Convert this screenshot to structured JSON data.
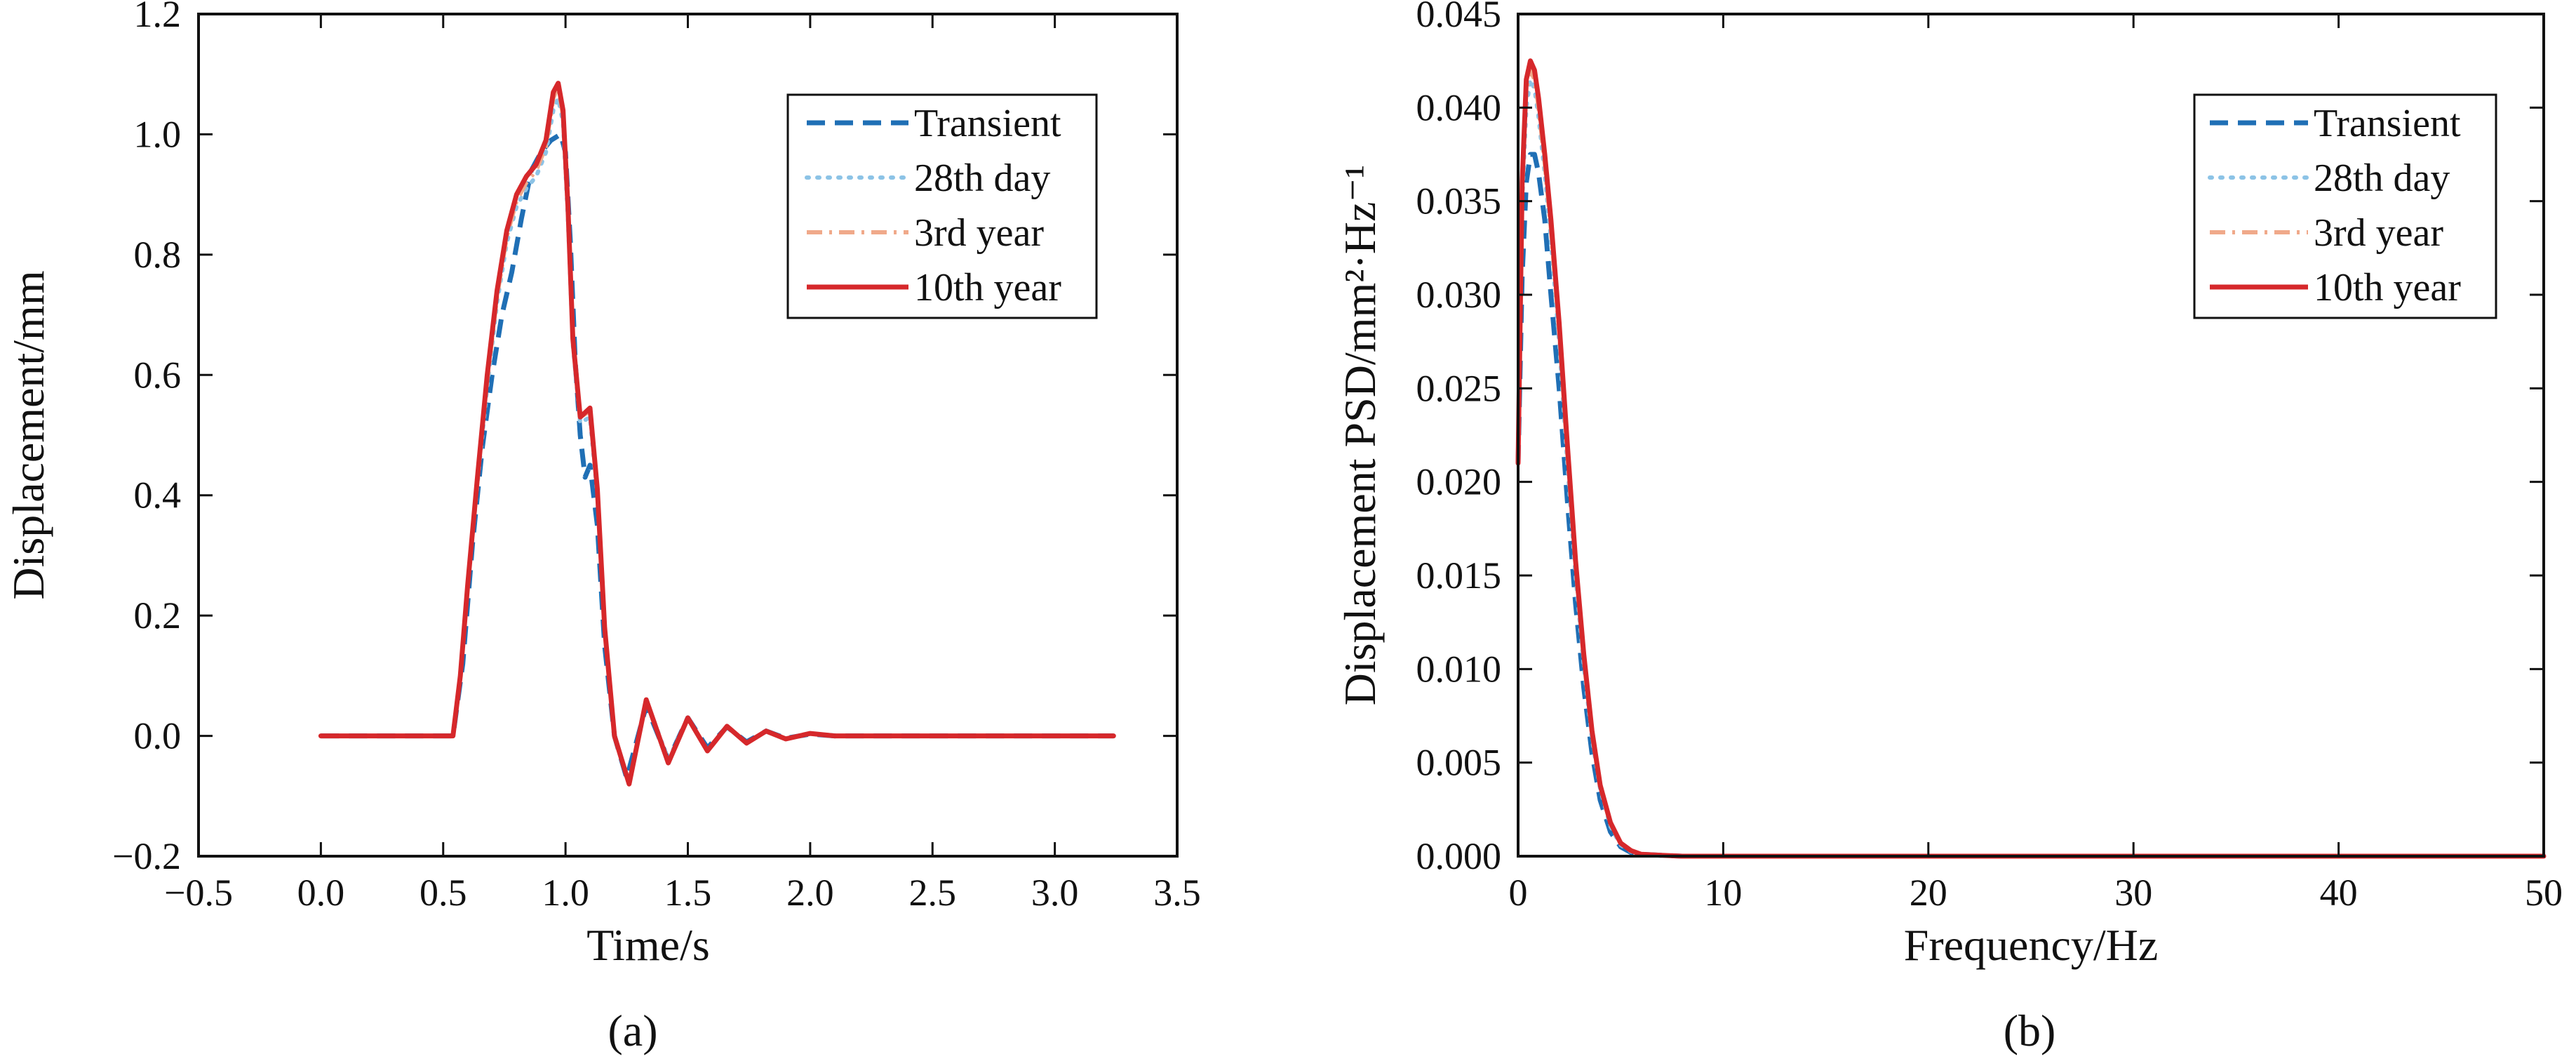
{
  "colors": {
    "transient": "#1f6fb5",
    "day28": "#8cc3e6",
    "year3": "#f0a98a",
    "year10": "#d6282b"
  },
  "chart_data": [
    {
      "id": "a",
      "type": "line",
      "panel_label": "(a)",
      "xlabel": "Time/s",
      "ylabel": "Displacement/mm",
      "xlim": [
        -0.5,
        3.5
      ],
      "ylim": [
        -0.2,
        1.2
      ],
      "xticks": [
        -0.5,
        0.0,
        0.5,
        1.0,
        1.5,
        2.0,
        2.5,
        3.0,
        3.5
      ],
      "xtick_labels": [
        "−0.5",
        "0.0",
        "0.5",
        "1.0",
        "1.5",
        "2.0",
        "2.5",
        "3.0",
        "3.5"
      ],
      "yticks": [
        -0.2,
        0.0,
        0.2,
        0.4,
        0.6,
        0.8,
        1.0,
        1.2
      ],
      "ytick_labels": [
        "−0.2",
        "0.0",
        "0.2",
        "0.4",
        "0.6",
        "0.8",
        "1.0",
        "1.2"
      ],
      "legend_position": "top-right",
      "series": [
        {
          "name": "Transient",
          "style": "dashed",
          "color_key": "transient",
          "x": [
            0.0,
            0.54,
            0.58,
            0.62,
            0.66,
            0.7,
            0.74,
            0.78,
            0.82,
            0.86,
            0.9,
            0.94,
            0.98,
            1.0,
            1.02,
            1.04,
            1.06,
            1.08,
            1.1,
            1.13,
            1.16,
            1.2,
            1.25,
            1.33,
            1.42,
            1.5,
            1.58,
            1.66,
            1.74,
            1.82,
            1.9,
            2.0,
            2.1,
            2.3,
            2.6,
            3.24
          ],
          "y": [
            0.0,
            0.0,
            0.12,
            0.32,
            0.48,
            0.6,
            0.7,
            0.77,
            0.86,
            0.94,
            0.97,
            0.99,
            1.0,
            0.97,
            0.82,
            0.62,
            0.5,
            0.43,
            0.45,
            0.35,
            0.15,
            0.0,
            -0.07,
            0.05,
            -0.04,
            0.03,
            -0.02,
            0.015,
            -0.01,
            0.008,
            -0.004,
            0.003,
            0.0,
            0.0,
            0.0,
            0.0
          ]
        },
        {
          "name": "28th day",
          "style": "dotted",
          "color_key": "day28",
          "x": [
            0.0,
            0.54,
            0.57,
            0.6,
            0.64,
            0.68,
            0.72,
            0.76,
            0.8,
            0.84,
            0.88,
            0.92,
            0.95,
            0.97,
            0.99,
            1.01,
            1.03,
            1.06,
            1.1,
            1.13,
            1.16,
            1.2,
            1.26,
            1.33,
            1.42,
            1.5,
            1.58,
            1.66,
            1.74,
            1.82,
            1.9,
            2.0,
            2.1,
            2.3,
            2.6,
            3.24
          ],
          "y": [
            0.0,
            0.0,
            0.1,
            0.25,
            0.42,
            0.58,
            0.72,
            0.82,
            0.88,
            0.91,
            0.93,
            0.97,
            1.04,
            1.06,
            1.02,
            0.86,
            0.65,
            0.52,
            0.53,
            0.4,
            0.18,
            0.0,
            -0.08,
            0.06,
            -0.04,
            0.03,
            -0.025,
            0.015,
            -0.012,
            0.008,
            -0.005,
            0.004,
            0.0,
            0.0,
            0.0,
            0.0
          ]
        },
        {
          "name": "3rd year",
          "style": "dashdot",
          "color_key": "year3",
          "x": [
            0.0,
            0.54,
            0.57,
            0.6,
            0.64,
            0.68,
            0.72,
            0.76,
            0.8,
            0.84,
            0.88,
            0.92,
            0.95,
            0.97,
            0.99,
            1.01,
            1.03,
            1.06,
            1.1,
            1.13,
            1.16,
            1.2,
            1.26,
            1.33,
            1.42,
            1.5,
            1.58,
            1.66,
            1.74,
            1.82,
            1.9,
            2.0,
            2.1,
            2.3,
            2.6,
            3.24
          ],
          "y": [
            0.0,
            0.0,
            0.1,
            0.25,
            0.43,
            0.59,
            0.73,
            0.83,
            0.89,
            0.92,
            0.94,
            0.98,
            1.06,
            1.08,
            1.03,
            0.87,
            0.66,
            0.53,
            0.54,
            0.41,
            0.18,
            0.0,
            -0.08,
            0.06,
            -0.045,
            0.03,
            -0.025,
            0.016,
            -0.012,
            0.008,
            -0.005,
            0.004,
            0.0,
            0.0,
            0.0,
            0.0
          ]
        },
        {
          "name": "10th year",
          "style": "solid",
          "color_key": "year10",
          "x": [
            0.0,
            0.54,
            0.57,
            0.6,
            0.64,
            0.68,
            0.72,
            0.76,
            0.8,
            0.84,
            0.88,
            0.92,
            0.95,
            0.97,
            0.99,
            1.01,
            1.03,
            1.06,
            1.1,
            1.13,
            1.16,
            1.2,
            1.26,
            1.33,
            1.42,
            1.5,
            1.58,
            1.66,
            1.74,
            1.82,
            1.9,
            2.0,
            2.1,
            2.3,
            2.6,
            3.24
          ],
          "y": [
            0.0,
            0.0,
            0.1,
            0.25,
            0.43,
            0.6,
            0.74,
            0.84,
            0.9,
            0.93,
            0.95,
            0.99,
            1.07,
            1.085,
            1.04,
            0.88,
            0.66,
            0.53,
            0.545,
            0.41,
            0.18,
            0.0,
            -0.08,
            0.06,
            -0.045,
            0.03,
            -0.025,
            0.016,
            -0.012,
            0.008,
            -0.005,
            0.004,
            0.0,
            0.0,
            0.0,
            0.0
          ]
        }
      ]
    },
    {
      "id": "b",
      "type": "line",
      "panel_label": "(b)",
      "xlabel": "Frequency/Hz",
      "ylabel": "Displacement PSD/mm²·Hz⁻¹",
      "xlim": [
        0,
        50
      ],
      "ylim": [
        0.0,
        0.045
      ],
      "xticks": [
        0,
        10,
        20,
        30,
        40,
        50
      ],
      "xtick_labels": [
        "0",
        "10",
        "20",
        "30",
        "40",
        "50"
      ],
      "yticks": [
        0.0,
        0.005,
        0.01,
        0.015,
        0.02,
        0.025,
        0.03,
        0.035,
        0.04,
        0.045
      ],
      "ytick_labels": [
        "0.000",
        "0.005",
        "0.010",
        "0.015",
        "0.020",
        "0.025",
        "0.030",
        "0.035",
        "0.040",
        "0.045"
      ],
      "legend_position": "top-right",
      "series": [
        {
          "name": "Transient",
          "style": "dashed",
          "color_key": "transient",
          "x": [
            0.0,
            0.2,
            0.4,
            0.6,
            0.8,
            1.0,
            1.3,
            1.6,
            2.0,
            2.4,
            2.8,
            3.2,
            3.6,
            4.0,
            4.5,
            5.0,
            5.5,
            6.0,
            7.0,
            8.0,
            10.0,
            20.0,
            30.0,
            40.0,
            50.0
          ],
          "y": [
            0.021,
            0.031,
            0.036,
            0.0375,
            0.0375,
            0.0365,
            0.034,
            0.03,
            0.025,
            0.019,
            0.0135,
            0.009,
            0.0055,
            0.003,
            0.0013,
            0.0005,
            0.0002,
            0.0001,
            5e-05,
            0.0,
            0.0,
            0.0,
            0.0,
            0.0,
            0.0
          ]
        },
        {
          "name": "28th day",
          "style": "dotted",
          "color_key": "day28",
          "x": [
            0.0,
            0.2,
            0.4,
            0.6,
            0.8,
            1.0,
            1.3,
            1.6,
            2.0,
            2.4,
            2.8,
            3.2,
            3.6,
            4.0,
            4.5,
            5.0,
            5.5,
            6.0,
            7.0,
            8.0,
            10.0,
            20.0,
            30.0,
            40.0,
            50.0
          ],
          "y": [
            0.021,
            0.035,
            0.04,
            0.0415,
            0.041,
            0.0395,
            0.0365,
            0.033,
            0.0275,
            0.021,
            0.015,
            0.0102,
            0.0063,
            0.0036,
            0.0016,
            0.0006,
            0.00025,
            0.0001,
            5e-05,
            0.0,
            0.0,
            0.0,
            0.0,
            0.0,
            0.0
          ]
        },
        {
          "name": "3rd year",
          "style": "dashdot",
          "color_key": "year3",
          "x": [
            0.0,
            0.2,
            0.4,
            0.6,
            0.8,
            1.0,
            1.3,
            1.6,
            2.0,
            2.4,
            2.8,
            3.2,
            3.6,
            4.0,
            4.5,
            5.0,
            5.5,
            6.0,
            7.0,
            8.0,
            10.0,
            20.0,
            30.0,
            40.0,
            50.0
          ],
          "y": [
            0.021,
            0.036,
            0.041,
            0.042,
            0.0415,
            0.04,
            0.037,
            0.0335,
            0.028,
            0.0215,
            0.0155,
            0.0105,
            0.0065,
            0.0037,
            0.0017,
            0.0007,
            0.0003,
            0.0001,
            5e-05,
            0.0,
            0.0,
            0.0,
            0.0,
            0.0,
            0.0
          ]
        },
        {
          "name": "10th year",
          "style": "solid",
          "color_key": "year10",
          "x": [
            0.0,
            0.2,
            0.4,
            0.6,
            0.8,
            1.0,
            1.3,
            1.6,
            2.0,
            2.4,
            2.8,
            3.2,
            3.6,
            4.0,
            4.5,
            5.0,
            5.5,
            6.0,
            7.0,
            8.0,
            10.0,
            20.0,
            30.0,
            40.0,
            50.0
          ],
          "y": [
            0.021,
            0.036,
            0.0415,
            0.0425,
            0.042,
            0.0405,
            0.0375,
            0.034,
            0.0285,
            0.022,
            0.0158,
            0.0108,
            0.0067,
            0.0038,
            0.0018,
            0.0007,
            0.0003,
            0.0001,
            5e-05,
            0.0,
            0.0,
            0.0,
            0.0,
            0.0,
            0.0
          ]
        }
      ]
    }
  ]
}
